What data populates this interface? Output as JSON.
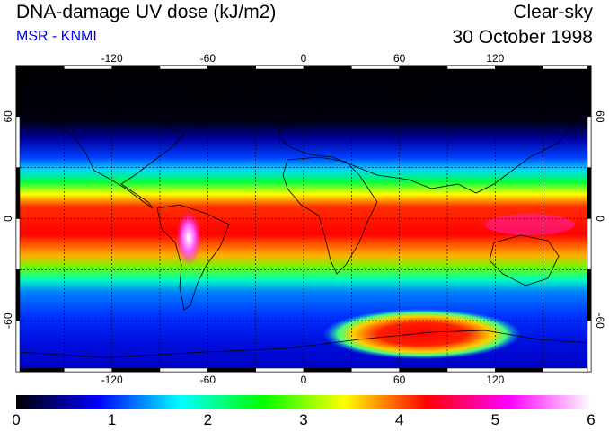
{
  "header": {
    "title": "DNA-damage UV dose (kJ/m2)",
    "source": "MSR - KNMI",
    "condition": "Clear-sky",
    "date": "30 October 1998"
  },
  "map": {
    "projection": "equirectangular",
    "lon_range": [
      -180,
      180
    ],
    "lat_range": [
      -90,
      90
    ],
    "lon_ticks": [
      "-120",
      "-60",
      "0",
      "60",
      "120"
    ],
    "lat_ticks": [
      "60",
      "0",
      "-60"
    ],
    "lon_tick_values": [
      -120,
      -60,
      0,
      60,
      120
    ],
    "lat_tick_values": [
      60,
      0,
      -60
    ],
    "grid_spacing_deg": 30,
    "grid": true,
    "coastlines": true
  },
  "colorbar": {
    "min": 0,
    "max": 6,
    "labels": [
      "0",
      "1",
      "2",
      "3",
      "4",
      "5",
      "6"
    ],
    "colors": [
      "#000000",
      "#0000ff",
      "#00ffff",
      "#00ff00",
      "#ffff00",
      "#ff0000",
      "#ff00ff",
      "#ffffff"
    ]
  }
}
